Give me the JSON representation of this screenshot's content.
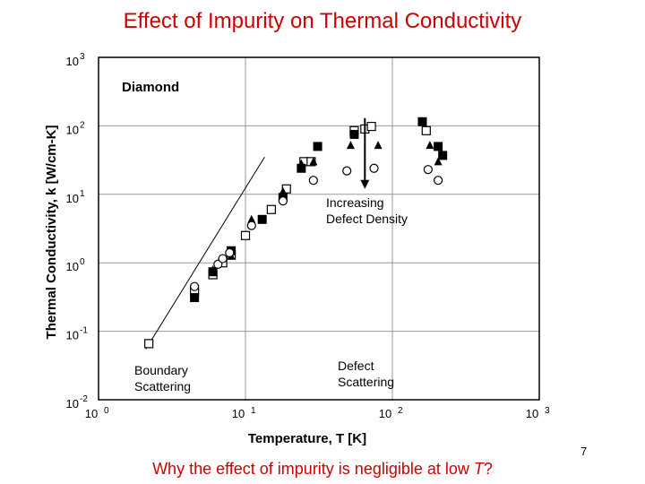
{
  "slide": {
    "title": "Effect of Impurity on Thermal Conductivity",
    "question_text": "Why the effect of impurity is negligible at low ",
    "question_var": "T",
    "question_end": "?",
    "page_number": "7"
  },
  "chart_data": {
    "type": "scatter",
    "title": "Effect of Impurity on Thermal Conductivity",
    "xlabel": "Temperature, T [K]",
    "ylabel": "Thermal Conductivity, k [W/cm-K]",
    "xscale": "log",
    "yscale": "log",
    "xlim": [
      1,
      1000
    ],
    "ylim": [
      0.01,
      1000
    ],
    "grid": true,
    "x_ticks": [
      {
        "base": "10",
        "exp": "0",
        "value": 1
      },
      {
        "base": "10",
        "exp": "1",
        "value": 10
      },
      {
        "base": "10",
        "exp": "2",
        "value": 100
      },
      {
        "base": "10",
        "exp": "3",
        "value": 1000
      }
    ],
    "y_ticks": [
      {
        "base": "10",
        "exp": "-2",
        "value": 0.01
      },
      {
        "base": "10",
        "exp": "-1",
        "value": 0.1
      },
      {
        "base": "10",
        "exp": "0",
        "value": 1
      },
      {
        "base": "10",
        "exp": "1",
        "value": 10
      },
      {
        "base": "10",
        "exp": "2",
        "value": 100
      },
      {
        "base": "10",
        "exp": "3",
        "value": 1000
      }
    ],
    "annotations": {
      "material": "Diamond",
      "increasing": [
        "Increasing",
        "Defect Density"
      ],
      "boundary": [
        "Boundary",
        "Scattering"
      ],
      "defect": [
        "Defect",
        "Scattering"
      ]
    },
    "reference_line": {
      "x": [
        2.1,
        13.5
      ],
      "y": [
        0.055,
        35
      ]
    },
    "arrow": {
      "x": 65,
      "y_start": 130,
      "y_end": 12
    },
    "series": [
      {
        "name": "open-square",
        "marker": "open-square",
        "points": [
          [
            2.2,
            0.066
          ],
          [
            4.5,
            0.38
          ],
          [
            6.0,
            0.67
          ],
          [
            7.0,
            1.0
          ],
          [
            8.0,
            1.3
          ],
          [
            10,
            2.5
          ],
          [
            15,
            6
          ],
          [
            19,
            12
          ],
          [
            25,
            30
          ],
          [
            28,
            30
          ],
          [
            55,
            85
          ],
          [
            65,
            90
          ],
          [
            72,
            98
          ],
          [
            170,
            85
          ]
        ]
      },
      {
        "name": "filled-square",
        "marker": "filled-square",
        "points": [
          [
            4.5,
            0.31
          ],
          [
            6.0,
            0.74
          ],
          [
            8.0,
            1.5
          ],
          [
            13,
            4.3
          ],
          [
            18,
            9.0
          ],
          [
            24,
            24
          ],
          [
            31,
            50
          ],
          [
            55,
            75
          ],
          [
            160,
            115
          ],
          [
            205,
            50
          ],
          [
            220,
            37
          ]
        ]
      },
      {
        "name": "filled-triangle",
        "marker": "filled-triangle",
        "points": [
          [
            6.0,
            0.79
          ],
          [
            8.0,
            1.25
          ],
          [
            11,
            4.3
          ],
          [
            18,
            11
          ],
          [
            24,
            28
          ],
          [
            29,
            30
          ],
          [
            52,
            52
          ],
          [
            80,
            52
          ],
          [
            180,
            52
          ],
          [
            205,
            30
          ]
        ]
      },
      {
        "name": "open-circle",
        "marker": "open-circle",
        "points": [
          [
            4.5,
            0.45
          ],
          [
            6.5,
            0.95
          ],
          [
            7.0,
            1.15
          ],
          [
            7.8,
            1.4
          ],
          [
            11,
            3.5
          ],
          [
            18,
            8.0
          ],
          [
            29,
            16
          ],
          [
            49,
            22
          ],
          [
            75,
            24
          ],
          [
            175,
            23
          ],
          [
            205,
            16
          ]
        ]
      }
    ]
  }
}
